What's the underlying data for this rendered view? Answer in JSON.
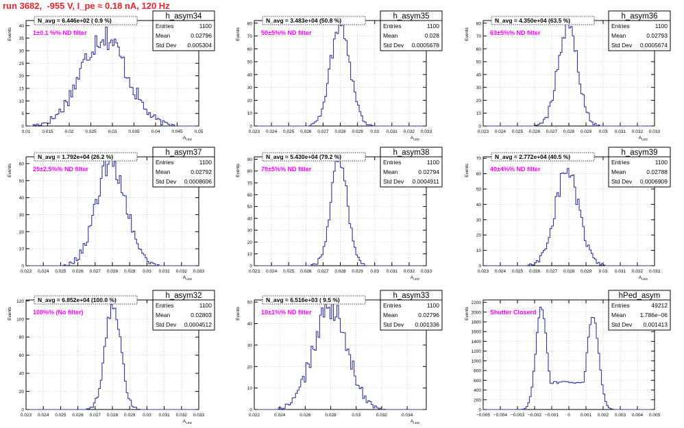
{
  "page_title": "run 3682,  -955 V, I_pe ≈ 0.18 nA, 120 Hz",
  "colors": {
    "histogram": "#3034a0",
    "annotation": "#ff00ff",
    "title": "#e8212a",
    "grid": "#bdbdbd"
  },
  "stats_labels": {
    "entries": "Entries",
    "mean": "Mean",
    "std": "Std Dev"
  },
  "chart_data": [
    {
      "type": "histogram",
      "title": "h_asym34",
      "ylabel": "Events",
      "xlabel": "A_LED",
      "xlim": [
        0.01,
        0.05
      ],
      "ylim": [
        0,
        42
      ],
      "xticks": [
        0.01,
        0.015,
        0.02,
        0.025,
        0.03,
        0.035,
        0.04,
        0.045,
        0.05
      ],
      "xticklabels": [
        "0.01",
        "0.015",
        "0.02",
        "0.025",
        "0.03",
        "0.035",
        "0.04",
        "0.045",
        "0.05"
      ],
      "yticks": [
        0,
        5,
        10,
        15,
        20,
        25,
        30,
        35,
        40
      ],
      "header": "N_avg = 6.446e+02 ( 0.9 %)",
      "annotation": "1±0.1 %% ND filter",
      "stats": {
        "entries": "1100",
        "mean": "0.02796",
        "std": "0.005304"
      },
      "shape": {
        "kind": "gauss",
        "mean": 0.02796,
        "sigma": 0.005304,
        "peak": 36
      }
    },
    {
      "type": "histogram",
      "title": "h_asym35",
      "ylabel": "Events",
      "xlabel": "A_LED",
      "xlim": [
        0.023,
        0.033
      ],
      "ylim": [
        0,
        82
      ],
      "xticks": [
        0.023,
        0.024,
        0.025,
        0.026,
        0.027,
        0.028,
        0.029,
        0.03,
        0.031,
        0.032,
        0.033
      ],
      "xticklabels": [
        "0.023",
        "0.024",
        "0.025",
        "0.026",
        "0.027",
        "0.028",
        "0.029",
        "0.03",
        "0.031",
        "0.032",
        "0.033"
      ],
      "yticks": [
        0,
        10,
        20,
        30,
        40,
        50,
        60,
        70,
        80
      ],
      "header": "N_avg = 3.483e+04 (50.8 %)",
      "annotation": "50±5%% ND filter",
      "stats": {
        "entries": "1100",
        "mean": "0.028",
        "std": "0.0005678"
      },
      "shape": {
        "kind": "gauss",
        "mean": 0.028,
        "sigma": 0.0005678,
        "peak": 80
      }
    },
    {
      "type": "histogram",
      "title": "h_asym36",
      "ylabel": "Events",
      "xlabel": "A_LED",
      "xlim": [
        0.023,
        0.033
      ],
      "ylim": [
        0,
        82
      ],
      "xticks": [
        0.023,
        0.024,
        0.025,
        0.026,
        0.027,
        0.028,
        0.029,
        0.03,
        0.031,
        0.032,
        0.033
      ],
      "xticklabels": [
        "0.023",
        "0.024",
        "0.025",
        "0.026",
        "0.027",
        "0.028",
        "0.029",
        "0.03",
        "0.031",
        "0.032",
        "0.033"
      ],
      "yticks": [
        0,
        10,
        20,
        30,
        40,
        50,
        60,
        70,
        80
      ],
      "header": "N_avg = 4.350e+04 (63.5 %)",
      "annotation": "63±5%% ND filter",
      "stats": {
        "entries": "1100",
        "mean": "0.02793",
        "std": "0.0005674"
      },
      "shape": {
        "kind": "gauss",
        "mean": 0.02793,
        "sigma": 0.0005674,
        "peak": 80
      }
    },
    {
      "type": "histogram",
      "title": "h_asym37",
      "ylabel": "Events",
      "xlabel": "A_LED",
      "xlim": [
        0.023,
        0.033
      ],
      "ylim": [
        0,
        64
      ],
      "xticks": [
        0.023,
        0.024,
        0.025,
        0.026,
        0.027,
        0.028,
        0.029,
        0.03,
        0.031,
        0.032,
        0.033
      ],
      "xticklabels": [
        "0.023",
        "0.024",
        "0.025",
        "0.026",
        "0.027",
        "0.028",
        "0.029",
        "0.03",
        "0.031",
        "0.032",
        "0.033"
      ],
      "yticks": [
        0,
        10,
        20,
        30,
        40,
        50,
        60
      ],
      "header": "N_avg = 1.792e+04 (26.2 %)",
      "annotation": "25±2.5%% ND filter",
      "stats": {
        "entries": "1100",
        "mean": "0.02792",
        "std": "0.0008606"
      },
      "shape": {
        "kind": "gauss",
        "mean": 0.02792,
        "sigma": 0.0008606,
        "peak": 61
      }
    },
    {
      "type": "histogram",
      "title": "h_asym38",
      "ylabel": "Events",
      "xlabel": "A_LED",
      "xlim": [
        0.023,
        0.033
      ],
      "ylim": [
        0,
        92
      ],
      "xticks": [
        0.023,
        0.024,
        0.025,
        0.026,
        0.027,
        0.028,
        0.029,
        0.03,
        0.031,
        0.032,
        0.033
      ],
      "xticklabels": [
        "0.023",
        "0.024",
        "0.025",
        "0.026",
        "0.027",
        "0.028",
        "0.029",
        "0.03",
        "0.031",
        "0.032",
        "0.033"
      ],
      "yticks": [
        0,
        10,
        20,
        30,
        40,
        50,
        60,
        70,
        80,
        90
      ],
      "header": "N_avg = 5.430e+04 (79.2 %)",
      "annotation": "79±5%% ND filter",
      "stats": {
        "entries": "1100",
        "mean": "0.02794",
        "std": "0.0004911"
      },
      "shape": {
        "kind": "gauss",
        "mean": 0.02794,
        "sigma": 0.0004911,
        "peak": 88
      }
    },
    {
      "type": "histogram",
      "title": "h_asym39",
      "ylabel": "Events",
      "xlabel": "A_LED",
      "xlim": [
        0.023,
        0.033
      ],
      "ylim": [
        0,
        71
      ],
      "xticks": [
        0.023,
        0.024,
        0.025,
        0.026,
        0.027,
        0.028,
        0.029,
        0.03,
        0.031,
        0.032,
        0.033
      ],
      "xticklabels": [
        "0.023",
        "0.024",
        "0.025",
        "0.026",
        "0.027",
        "0.028",
        "0.029",
        "0.03",
        "0.031",
        "0.032",
        "0.033"
      ],
      "yticks": [
        0,
        10,
        20,
        30,
        40,
        50,
        60,
        70
      ],
      "header": "N_avg = 2.772e+04 (40.5 %)",
      "annotation": "40±4%% ND filter",
      "stats": {
        "entries": "1100",
        "mean": "0.02788",
        "std": "0.0006909"
      },
      "shape": {
        "kind": "gauss",
        "mean": 0.02788,
        "sigma": 0.0006909,
        "peak": 62
      }
    },
    {
      "type": "histogram",
      "title": "h_asym32",
      "ylabel": "Events",
      "xlabel": "A_LED",
      "xlim": [
        0.023,
        0.033
      ],
      "ylim": [
        0,
        121
      ],
      "xticks": [
        0.023,
        0.024,
        0.025,
        0.026,
        0.027,
        0.028,
        0.029,
        0.03,
        0.031,
        0.032,
        0.033
      ],
      "xticklabels": [
        "0.023",
        "0.024",
        "0.025",
        "0.026",
        "0.027",
        "0.028",
        "0.029",
        "0.03",
        "0.031",
        "0.032",
        "0.033"
      ],
      "yticks": [
        0,
        20,
        40,
        60,
        80,
        100,
        120
      ],
      "header": "N_avg = 6.852e+04 (100.0 %)",
      "annotation": "100%% (No filter)",
      "stats": {
        "entries": "1100",
        "mean": "0.02803",
        "std": "0.0004512"
      },
      "shape": {
        "kind": "gauss",
        "mean": 0.02803,
        "sigma": 0.0004512,
        "peak": 115
      }
    },
    {
      "type": "histogram",
      "title": "h_asym33",
      "ylabel": "Events",
      "xlabel": "A_LED",
      "xlim": [
        0.022,
        0.0355
      ],
      "ylim": [
        0,
        51
      ],
      "xticks": [
        0.022,
        0.024,
        0.026,
        0.028,
        0.03,
        0.032,
        0.034
      ],
      "xticklabels": [
        "0.022",
        "0.024",
        "0.026",
        "0.028",
        "0.03",
        "0.032",
        "0.034"
      ],
      "yticks": [
        0,
        10,
        20,
        30,
        40,
        50
      ],
      "header": "N_avg = 6.516e+03 ( 9.5 %)",
      "annotation": "10±1%% ND filter",
      "stats": {
        "entries": "1100",
        "mean": "0.02796",
        "std": "0.001336"
      },
      "shape": {
        "kind": "gauss",
        "mean": 0.02796,
        "sigma": 0.001336,
        "peak": 47
      }
    },
    {
      "type": "histogram",
      "title": "hPed_asym",
      "ylabel": "Events",
      "xlabel": "",
      "xlim": [
        -0.005,
        0.005
      ],
      "ylim": [
        0,
        2250
      ],
      "xticks": [
        -0.005,
        -0.004,
        -0.003,
        -0.002,
        -0.001,
        0,
        0.001,
        0.002,
        0.003,
        0.004,
        0.005
      ],
      "xticklabels": [
        "−0.005",
        "−0.004",
        "−0.003",
        "−0.002",
        "−0.001",
        "0",
        "0.001",
        "0.002",
        "0.003",
        "0.004",
        "0.005"
      ],
      "yticks": [
        0,
        200,
        400,
        600,
        800,
        1000,
        1200,
        1400,
        1600,
        1800,
        2000,
        2200
      ],
      "header": "",
      "annotation": "Shutter Closerd",
      "stats": {
        "entries": "49212",
        "mean": "1.786e−06",
        "std": "0.001413"
      },
      "shape": {
        "kind": "double",
        "peaks": [
          [
            -0.0016,
            0.00032,
            2100
          ],
          [
            0.0014,
            0.00034,
            1930
          ]
        ],
        "floor": 520,
        "floorMin": -0.0017,
        "floorMax": 0.0017
      }
    }
  ]
}
